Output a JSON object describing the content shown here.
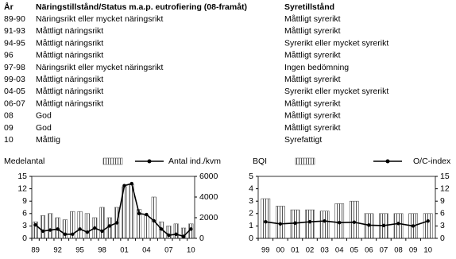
{
  "table": {
    "header": [
      "År",
      "Näringstillstånd/Status m.a.p. eutrofiering (08-framåt)",
      "Syretillstånd"
    ],
    "rows": [
      [
        "89-90",
        "Näringsrikt eller mycket näringsrikt",
        "Måttligt syrerikt"
      ],
      [
        "91-93",
        "Måttligt näringsrikt",
        "Måttligt syrerikt"
      ],
      [
        "94-95",
        "Måttligt näringsrikt",
        "Syrerikt eller mycket syrerikt"
      ],
      [
        "96",
        "Måttligt näringsrikt",
        "Måttligt syrerikt"
      ],
      [
        "97-98",
        "Näringsrikt eller mycket näringsrikt",
        "Ingen bedömning"
      ],
      [
        "99-03",
        "Måttligt näringsrikt",
        "Måttligt syrerikt"
      ],
      [
        "04-05",
        "Måttligt näringsrikt",
        "Syrerikt eller mycket syrerikt"
      ],
      [
        "06-07",
        "Måttligt näringsrikt",
        "Måttligt syrerikt"
      ],
      [
        "08",
        "God",
        "Måttligt syrerikt"
      ],
      [
        "09",
        "God",
        "Måttligt syrerikt"
      ],
      [
        "10",
        "Måttlig",
        "Syrefattigt"
      ]
    ]
  },
  "chart_data": [
    {
      "type": "bar-line",
      "categories": [
        "89",
        null,
        null,
        "92",
        null,
        null,
        "95",
        null,
        null,
        "98",
        null,
        null,
        "01",
        null,
        null,
        "04",
        null,
        null,
        "07",
        null,
        null,
        "10"
      ],
      "series": [
        {
          "name": "Medelantal",
          "color": "#555555",
          "type": "bar",
          "values": [
            4,
            5.5,
            6,
            5,
            4.5,
            6.5,
            6.5,
            6,
            5,
            7.5,
            5,
            7.5,
            12.5,
            13,
            7,
            5.5,
            10,
            4,
            3,
            3.5,
            2.5,
            3.5
          ]
        },
        {
          "name": "Antal ind./kvm",
          "color": "#000000",
          "type": "line",
          "axis": "y2",
          "values": [
            1300,
            700,
            800,
            900,
            400,
            400,
            900,
            600,
            1000,
            700,
            1200,
            1500,
            5100,
            5300,
            2400,
            2300,
            1700,
            900,
            300,
            400,
            200,
            900
          ]
        }
      ],
      "ylim": [
        0,
        15
      ],
      "yticks": [
        0,
        3,
        6,
        9,
        12,
        15
      ],
      "y2lim": [
        0,
        6000
      ],
      "y2ticks": [
        0,
        2000,
        4000,
        6000
      ]
    },
    {
      "type": "bar-line",
      "categories": [
        "99",
        "00",
        "01",
        "02",
        "03",
        "04",
        "05",
        "06",
        "07",
        "08",
        "09",
        "10"
      ],
      "series": [
        {
          "name": "BQI",
          "color": "#555555",
          "type": "bar",
          "values": [
            3.2,
            2.6,
            2.3,
            2.3,
            2.2,
            2.8,
            3.0,
            2.0,
            2.0,
            2.0,
            2.0,
            2.0
          ]
        },
        {
          "name": "O/C-index",
          "color": "#000000",
          "type": "line",
          "axis": "y2",
          "values": [
            4,
            3.5,
            3.7,
            4,
            4.2,
            3.8,
            3.9,
            3.2,
            3.1,
            3.6,
            3.0,
            4.2
          ]
        }
      ],
      "ylim": [
        0,
        5
      ],
      "yticks": [
        0,
        1,
        2,
        3,
        4,
        5
      ],
      "y2lim": [
        0,
        15
      ],
      "y2ticks": [
        0,
        3,
        6,
        9,
        12,
        15
      ]
    }
  ]
}
